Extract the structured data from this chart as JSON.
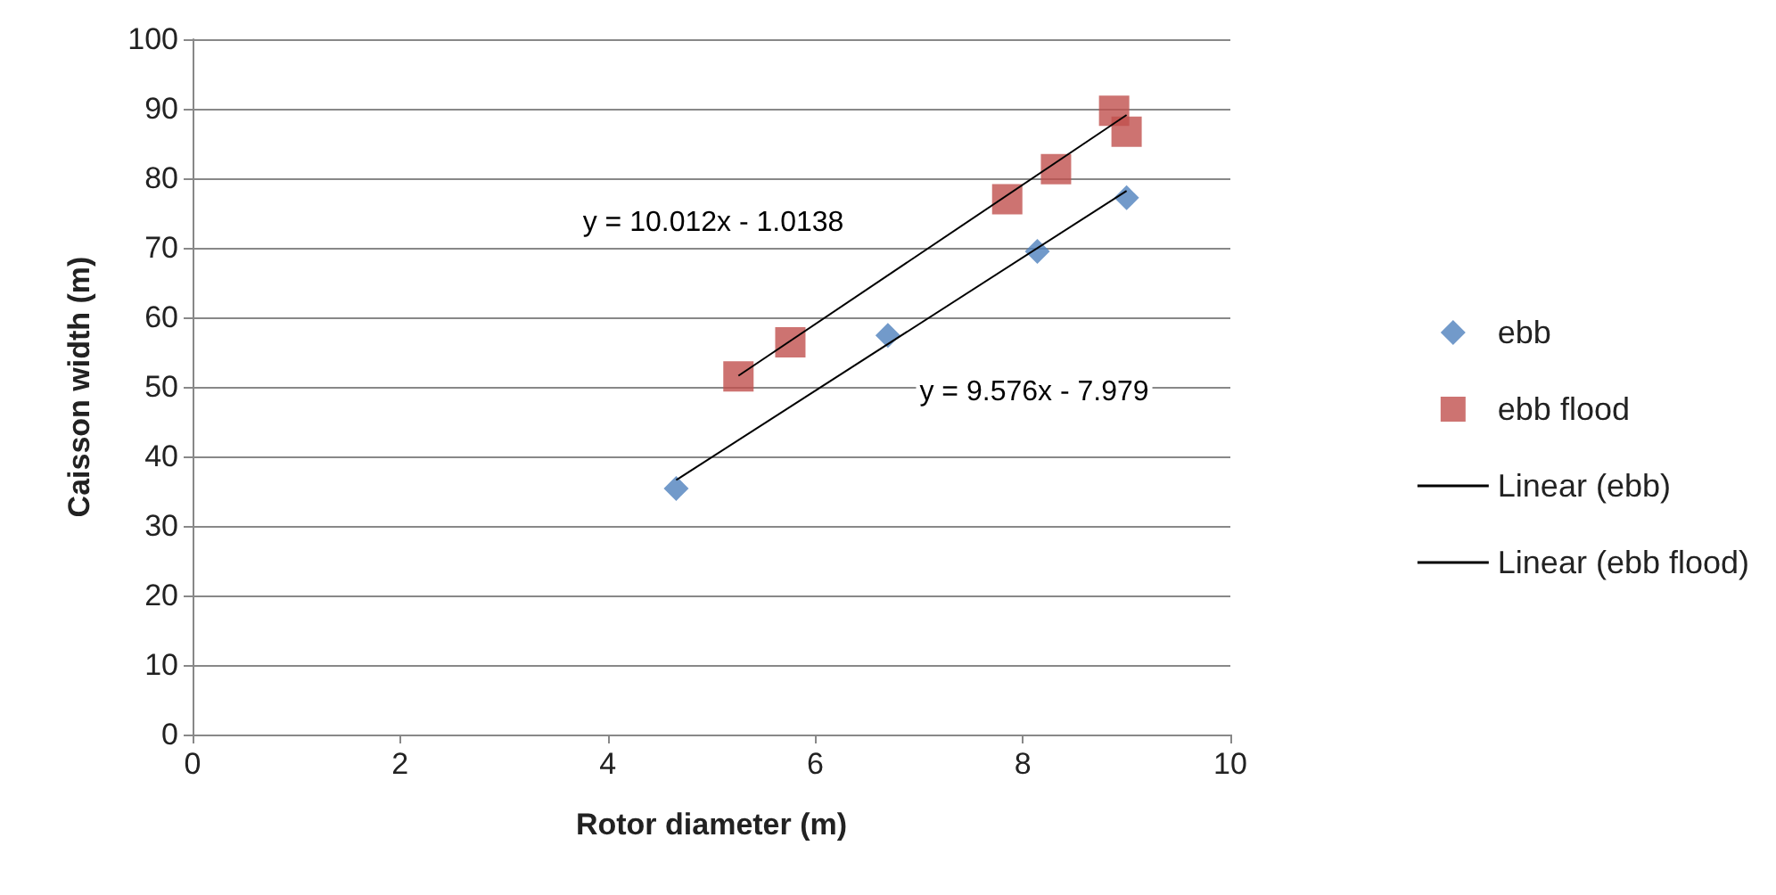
{
  "chart_data": {
    "type": "scatter",
    "xlabel": "Rotor diameter (m)",
    "ylabel": "Caisson width (m)",
    "xlim": [
      0,
      10
    ],
    "xticks": [
      0,
      2,
      4,
      6,
      8,
      10
    ],
    "ylim": [
      0,
      100
    ],
    "yticks": [
      0,
      10,
      20,
      30,
      40,
      50,
      60,
      70,
      80,
      90,
      100
    ],
    "grid": "y",
    "legend": "right",
    "series": [
      {
        "name": "ebb",
        "color": "#4f81bd",
        "marker": "diamond",
        "x": [
          4.66,
          6.7,
          8.14,
          9.0
        ],
        "values": [
          35.4,
          57.4,
          69.5,
          77.2
        ]
      },
      {
        "name": "ebb flood",
        "color": "#c0504d",
        "marker": "square",
        "x": [
          5.26,
          5.76,
          7.85,
          8.32,
          8.88,
          9.0
        ],
        "values": [
          51.5,
          56.4,
          77,
          81.3,
          89.7,
          86.7
        ]
      },
      {
        "name": "Linear (ebb)",
        "type": "line",
        "color": "#000000",
        "marker": "none",
        "x": [
          4.66,
          9.0
        ],
        "values": [
          36.6,
          78.2
        ]
      },
      {
        "name": "Linear (ebb flood)",
        "type": "line",
        "color": "#000000",
        "marker": "none",
        "x": [
          5.26,
          9.0
        ],
        "values": [
          51.6,
          89.1
        ]
      }
    ],
    "annotations": [
      "y = 10.012x - 1.0138",
      "y = 9.576x - 7.979"
    ]
  }
}
